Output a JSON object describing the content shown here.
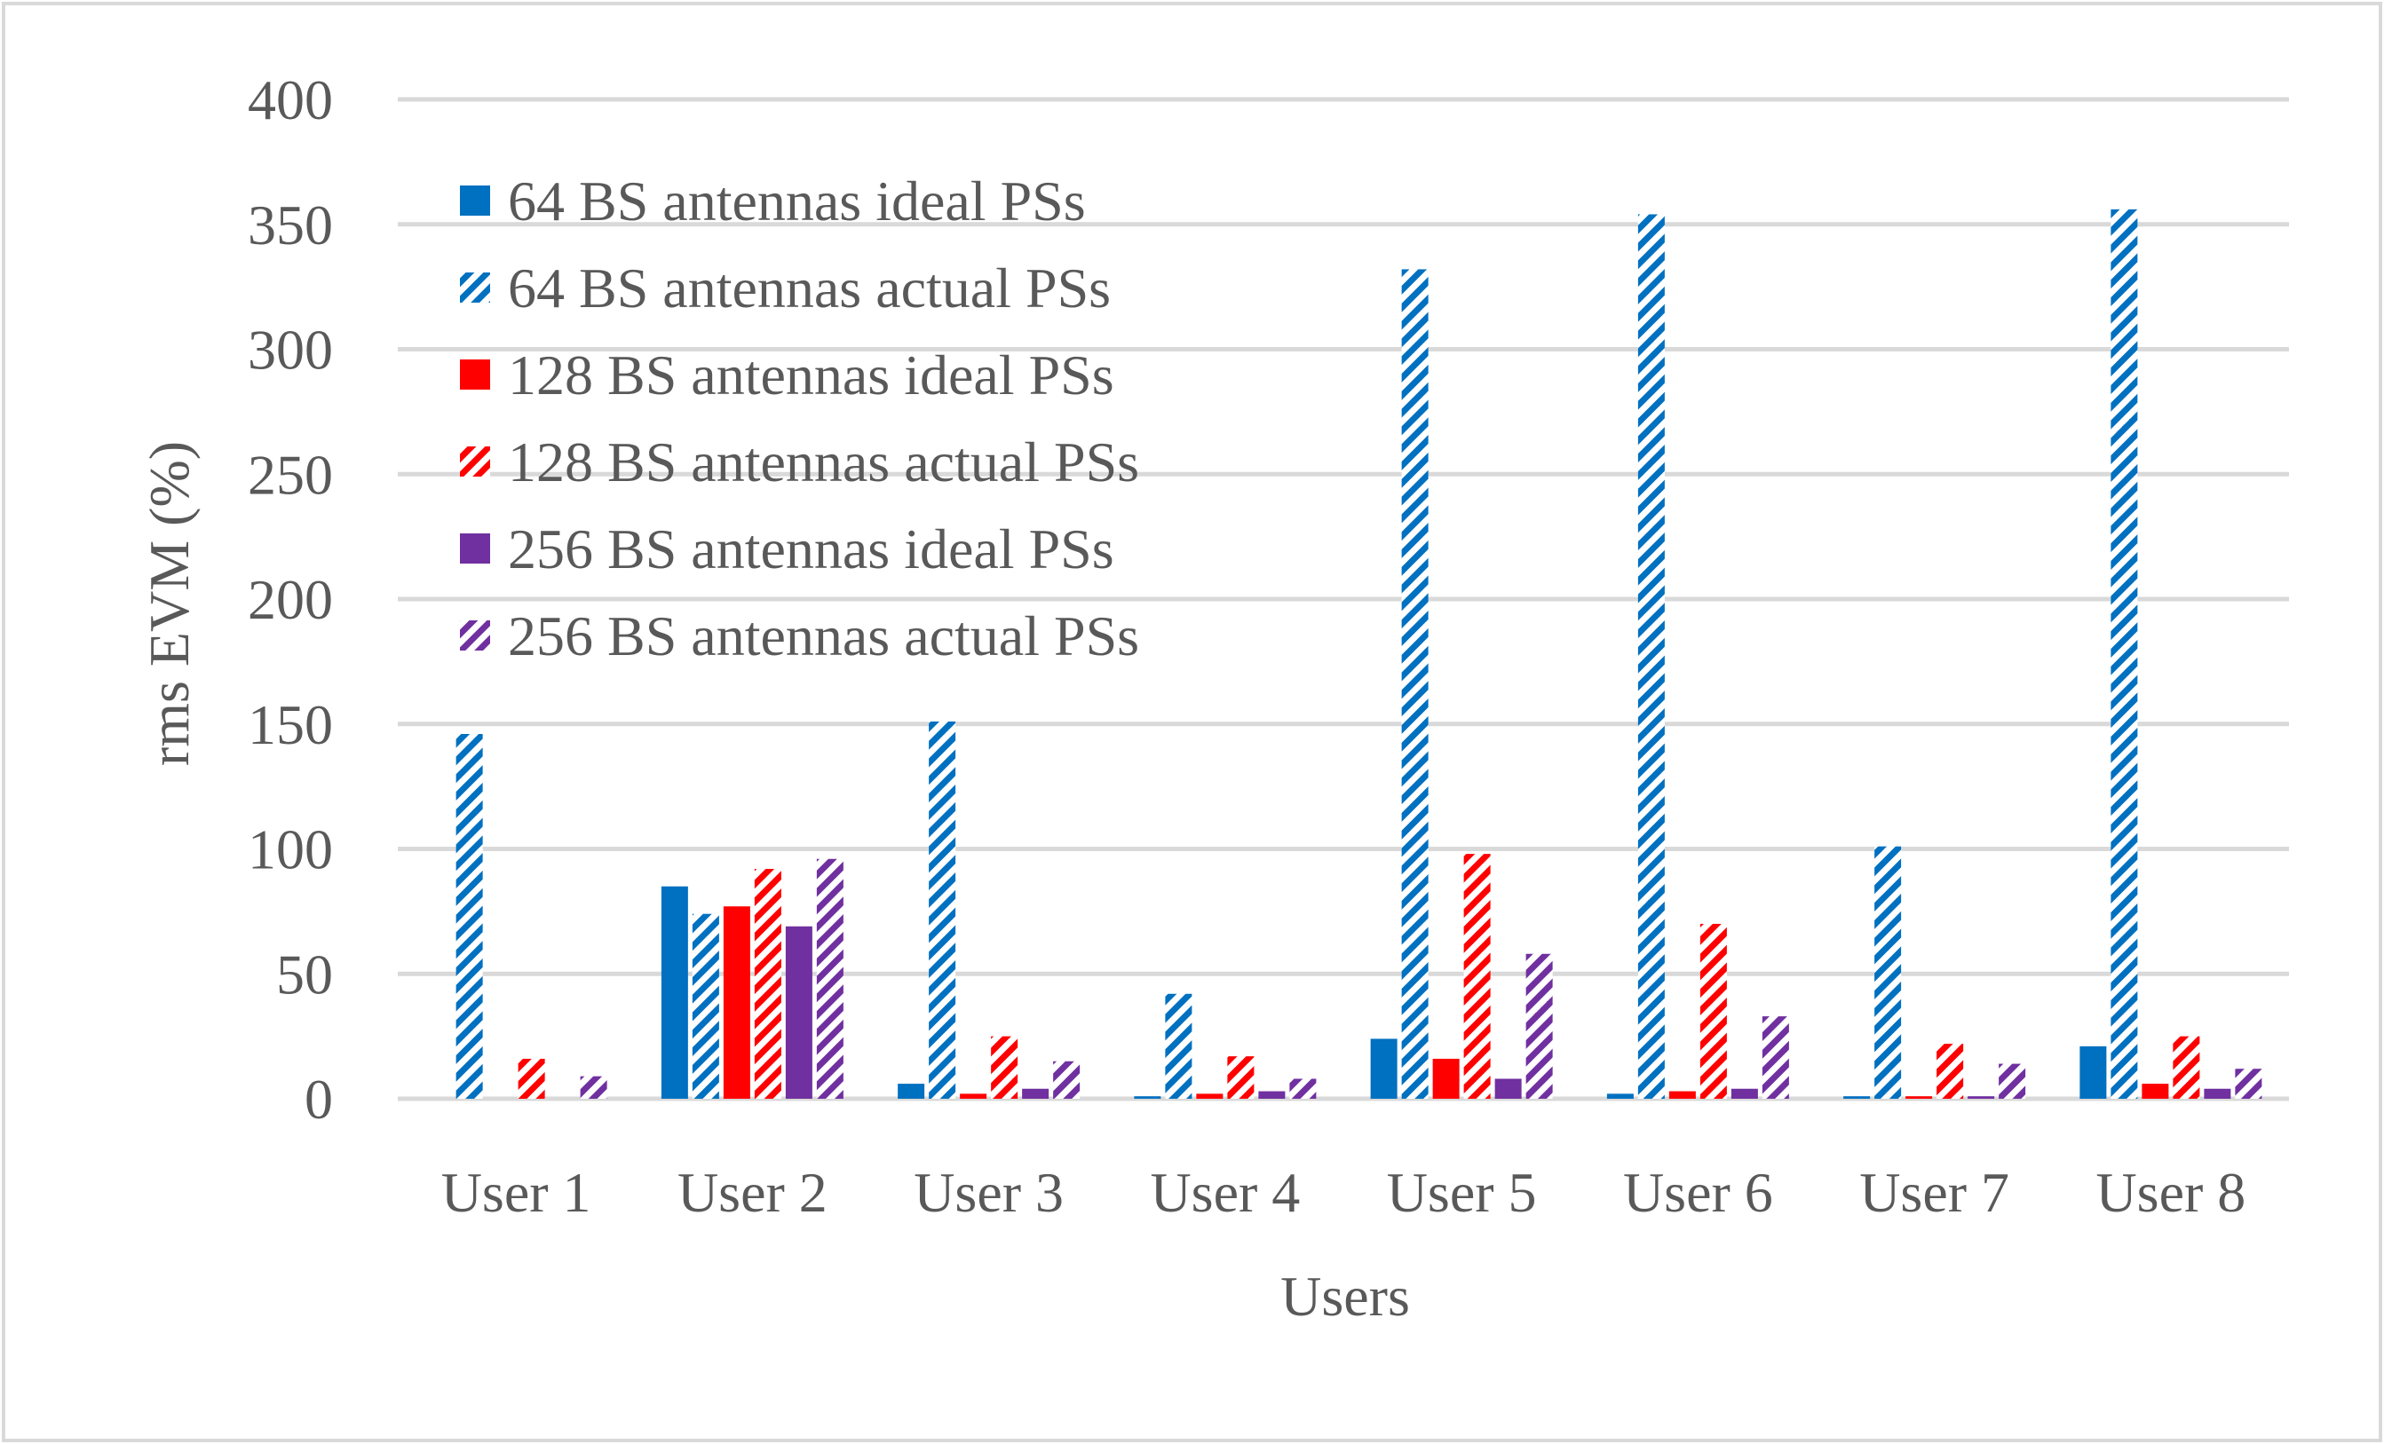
{
  "chart_data": {
    "type": "bar",
    "title": "",
    "xlabel": "Users",
    "ylabel": "rms EVM (%)",
    "ylim": [
      0,
      400
    ],
    "yticks": [
      0,
      50,
      100,
      150,
      200,
      250,
      300,
      350,
      400
    ],
    "grid": true,
    "legend_position": "top-left",
    "categories": [
      "User 1",
      "User 2",
      "User 3",
      "User 4",
      "User 5",
      "User 6",
      "User 7",
      "User 8"
    ],
    "series": [
      {
        "name": "64 BS antennas ideal PSs",
        "color": "#0070C0",
        "pattern": "solid",
        "values": [
          0,
          85,
          6,
          1,
          24,
          2,
          1,
          21
        ]
      },
      {
        "name": "64 BS antennas actual PSs",
        "color": "#0070C0",
        "pattern": "hatched",
        "values": [
          146,
          74,
          151,
          42,
          332,
          354,
          101,
          356
        ]
      },
      {
        "name": "128 BS antennas ideal PSs",
        "color": "#FF0000",
        "pattern": "solid",
        "values": [
          0,
          77,
          2,
          2,
          16,
          3,
          1,
          6
        ]
      },
      {
        "name": "128 BS antennas actual PSs",
        "color": "#FF0000",
        "pattern": "hatched",
        "values": [
          16,
          92,
          25,
          17,
          98,
          70,
          22,
          25
        ]
      },
      {
        "name": "256 BS antennas ideal PSs",
        "color": "#7030A0",
        "pattern": "solid",
        "values": [
          0,
          69,
          4,
          3,
          8,
          4,
          1,
          4
        ]
      },
      {
        "name": "256 BS antennas actual PSs",
        "color": "#7030A0",
        "pattern": "hatched",
        "values": [
          9,
          96,
          15,
          8,
          58,
          33,
          14,
          12
        ]
      }
    ]
  }
}
